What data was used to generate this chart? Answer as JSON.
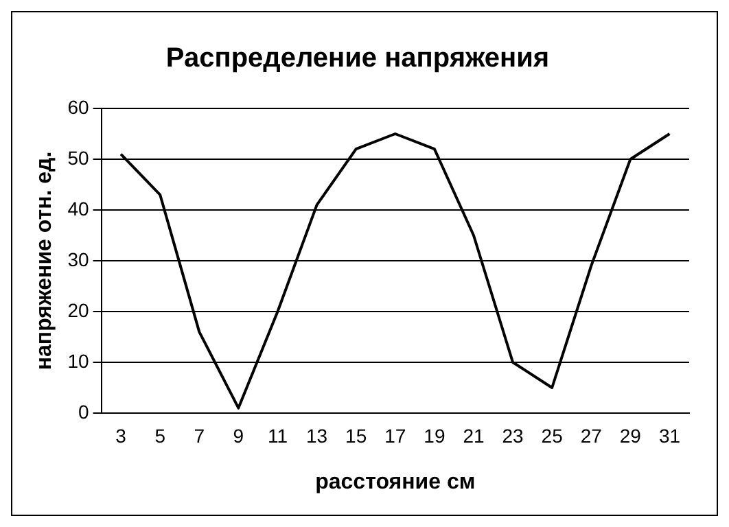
{
  "chart_data": {
    "type": "line",
    "title": "Распределение напряжения",
    "xlabel": "расстояние см",
    "ylabel": "напряжение отн. ед.",
    "categories": [
      "3",
      "5",
      "7",
      "9",
      "11",
      "13",
      "15",
      "17",
      "19",
      "21",
      "23",
      "25",
      "27",
      "29",
      "31"
    ],
    "series": [
      {
        "color": "#000000",
        "values": [
          51,
          43,
          16,
          1,
          20,
          41,
          52,
          55,
          52,
          35,
          10,
          5,
          29,
          50,
          55
        ]
      }
    ],
    "ylim": [
      0,
      60
    ],
    "yticks": [
      0,
      10,
      20,
      30,
      40,
      50,
      60
    ],
    "grid": "y",
    "legend": false,
    "marker": "none",
    "line_style": "solid"
  }
}
